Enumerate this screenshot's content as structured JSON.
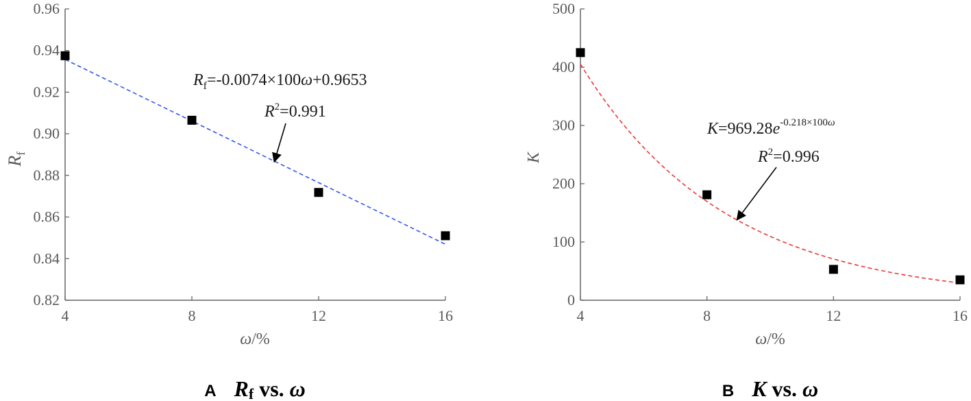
{
  "chart_data": [
    {
      "type": "scatter",
      "panel_letter": "A",
      "caption": {
        "var_main": "R",
        "var_sub": "f",
        "mid": " vs. ",
        "var2": "ω"
      },
      "xlabel": {
        "var": "ω",
        "rest": "/%"
      },
      "ylabel": {
        "var": "R",
        "sub": "f"
      },
      "xlim": [
        4,
        16
      ],
      "ylim": [
        0.82,
        0.96
      ],
      "xticks": [
        4,
        8,
        12,
        16
      ],
      "xtick_labels": [
        "4",
        "8",
        "12",
        "16"
      ],
      "yticks": [
        0.82,
        0.84,
        0.86,
        0.88,
        0.9,
        0.92,
        0.94,
        0.96
      ],
      "ytick_labels": [
        "0.82",
        "0.84",
        "0.86",
        "0.88",
        "0.90",
        "0.92",
        "0.94",
        "0.96"
      ],
      "points": {
        "x": [
          4,
          8,
          12,
          16
        ],
        "y": [
          0.9375,
          0.9065,
          0.8718,
          0.851
        ]
      },
      "fit": {
        "kind": "linear",
        "slope": -0.0074,
        "intercept": 0.9653,
        "color": "#3355ee",
        "x_range": [
          4,
          16
        ]
      },
      "equation": {
        "var": "R",
        "sub": "f",
        "text": "=-0.0074×100",
        "omega": "ω",
        "tail": "+0.9653"
      },
      "r2": {
        "var": "R",
        "sup": "2",
        "text": "=0.991"
      },
      "arrow_target": {
        "x": 10.6,
        "y": 0.8865
      }
    },
    {
      "type": "scatter",
      "panel_letter": "B",
      "caption": {
        "var_main": "K",
        "var_sub": "",
        "mid": " vs. ",
        "var2": "ω"
      },
      "xlabel": {
        "var": "ω",
        "rest": "/%"
      },
      "ylabel": {
        "var": "K",
        "sub": ""
      },
      "xlim": [
        4,
        16
      ],
      "ylim": [
        0,
        500
      ],
      "xticks": [
        4,
        8,
        12,
        16
      ],
      "xtick_labels": [
        "4",
        "8",
        "12",
        "16"
      ],
      "yticks": [
        0,
        100,
        200,
        300,
        400,
        500
      ],
      "ytick_labels": [
        "0",
        "100",
        "200",
        "300",
        "400",
        "500"
      ],
      "points": {
        "x": [
          4,
          8,
          12,
          16
        ],
        "y": [
          425,
          181,
          53,
          35
        ]
      },
      "fit": {
        "kind": "exponential",
        "a": 969.28,
        "b": -0.218,
        "color": "#ee3333",
        "x_range": [
          4,
          16
        ]
      },
      "equation": {
        "var": "K",
        "text": "=969.28",
        "e": "e",
        "exp": "-0.218×100",
        "omega": "ω"
      },
      "r2": {
        "var": "R",
        "sup": "2",
        "text": "=0.996"
      },
      "arrow_target": {
        "x": 8.95,
        "y": 138
      }
    }
  ]
}
